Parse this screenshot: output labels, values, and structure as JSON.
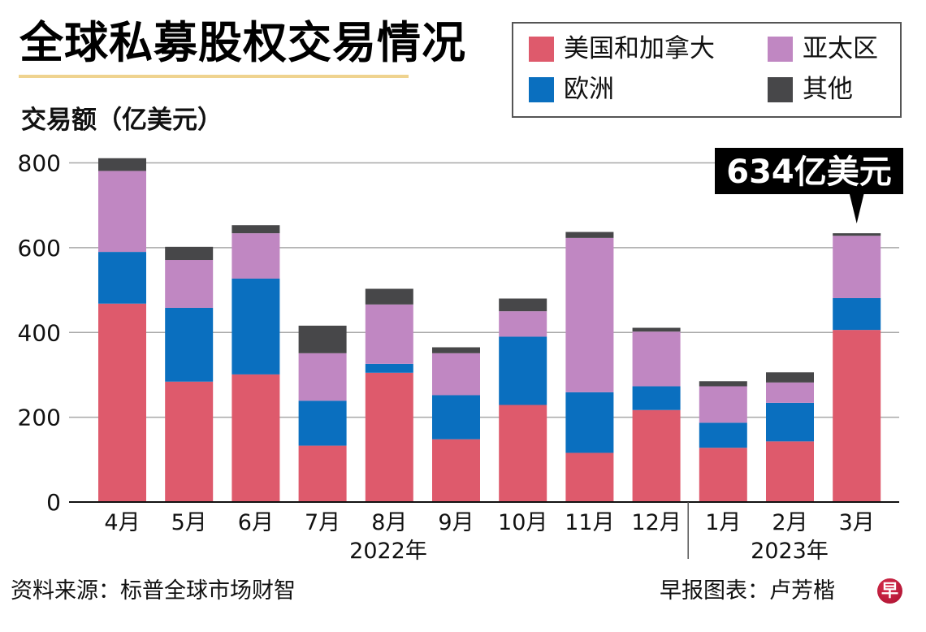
{
  "title": "全球私募股权交易情况",
  "footer": {
    "source": "资料来源：标普全球市场财智",
    "credit": "早报图表：卢芳楷",
    "logo_glyph": "早"
  },
  "chart_data": {
    "type": "bar",
    "stacked": true,
    "title": "全球私募股权交易情况",
    "xlabel": "",
    "ylabel": "交易额（亿美元）",
    "ylim": [
      0,
      800
    ],
    "yticks": [
      0,
      200,
      400,
      600,
      800
    ],
    "grid": true,
    "legend_position": "top-right",
    "categories": [
      "4月",
      "5月",
      "6月",
      "7月",
      "8月",
      "9月",
      "10月",
      "11月",
      "12月",
      "1月",
      "2月",
      "3月"
    ],
    "year_groups": [
      {
        "label": "2022年",
        "start": 0,
        "end": 8
      },
      {
        "label": "2023年",
        "start": 9,
        "end": 11
      }
    ],
    "series": [
      {
        "name": "美国和加拿大",
        "color": "#DE5A6C",
        "values": [
          468,
          284,
          301,
          133,
          305,
          148,
          229,
          116,
          217,
          128,
          143,
          406
        ]
      },
      {
        "name": "欧洲",
        "color": "#0A6FBF",
        "values": [
          122,
          174,
          226,
          106,
          21,
          104,
          161,
          143,
          56,
          59,
          91,
          75
        ]
      },
      {
        "name": "亚太区",
        "color": "#C087C2",
        "values": [
          191,
          113,
          107,
          112,
          140,
          99,
          60,
          364,
          129,
          86,
          48,
          147
        ]
      },
      {
        "name": "其他",
        "color": "#474749",
        "values": [
          30,
          31,
          19,
          65,
          37,
          14,
          30,
          14,
          9,
          12,
          24,
          6
        ]
      }
    ],
    "legend_order": [
      "美国和加拿大",
      "亚太区",
      "欧洲",
      "其他"
    ],
    "annotation": {
      "text": "634亿美元",
      "category_index": 11,
      "value": 634
    }
  }
}
